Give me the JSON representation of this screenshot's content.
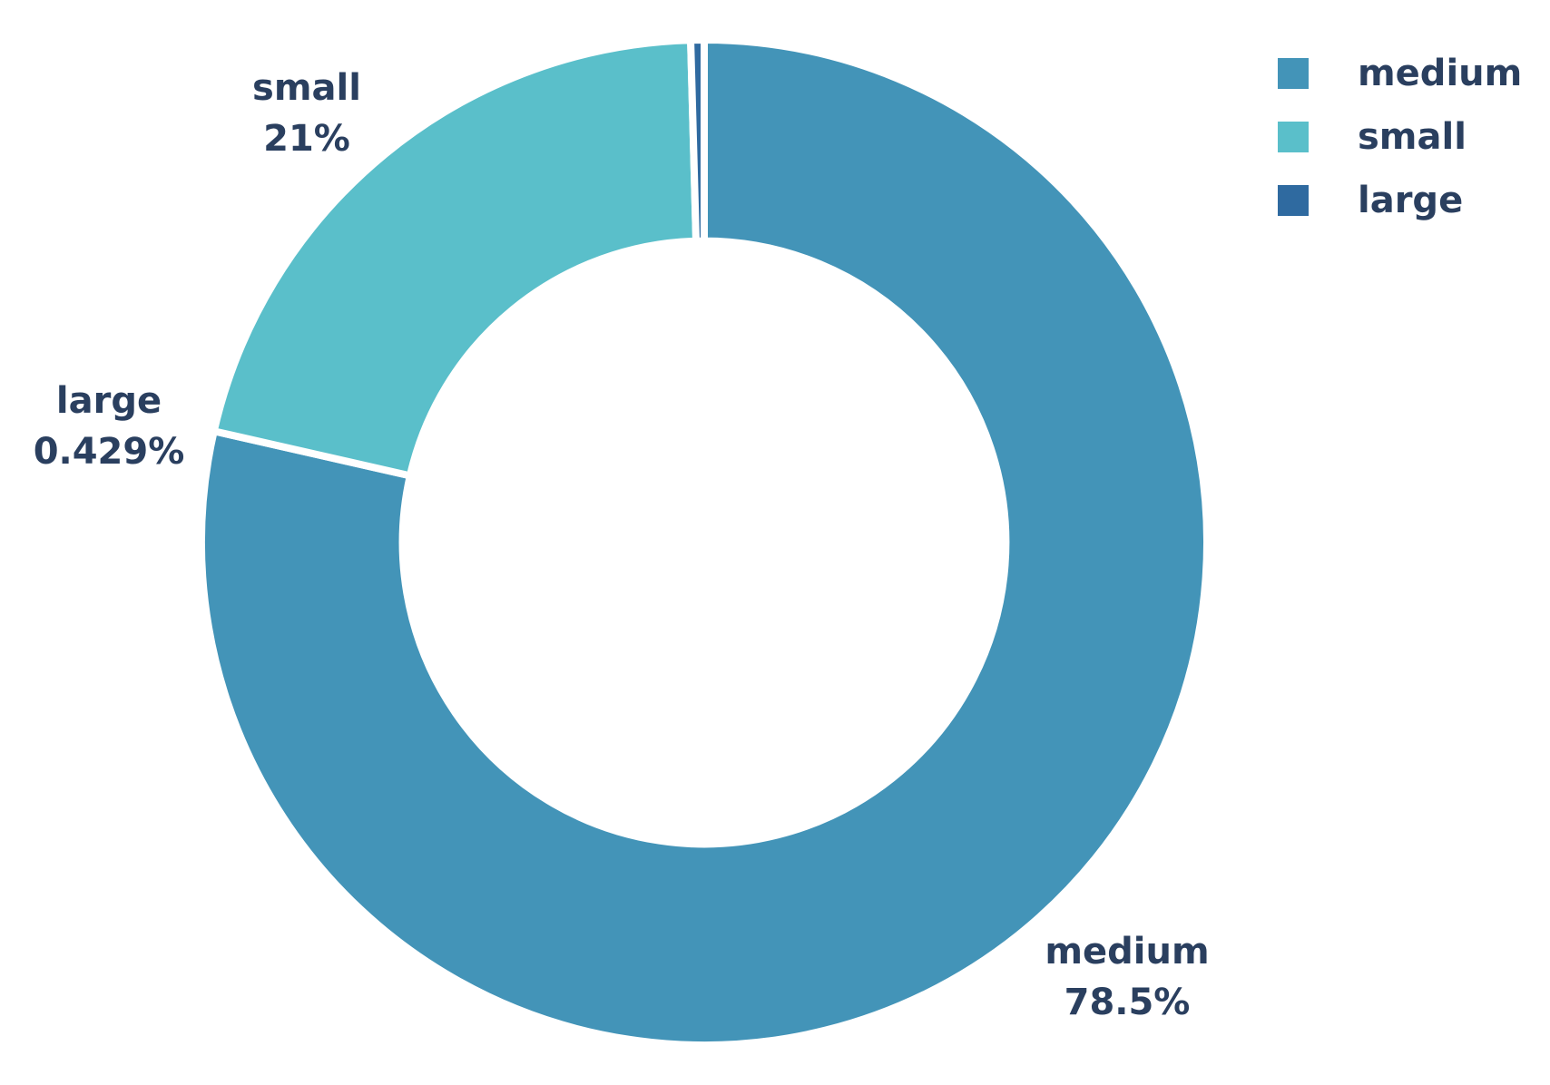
{
  "chart_data": {
    "type": "pie",
    "hole": 0.6,
    "title": "",
    "categories": [
      "medium",
      "small",
      "large"
    ],
    "values": [
      78.5,
      21,
      0.429
    ],
    "labels": [
      {
        "name": "medium",
        "percent": "78.5%"
      },
      {
        "name": "small",
        "percent": "21%"
      },
      {
        "name": "large",
        "percent": "0.429%"
      }
    ],
    "colors": [
      "#4394b8",
      "#5abfca",
      "#2f6aa0"
    ],
    "legend": {
      "position": "top-right",
      "items": [
        {
          "label": "medium",
          "color": "#4394b8"
        },
        {
          "label": "small",
          "color": "#5abfca"
        },
        {
          "label": "large",
          "color": "#2f6aa0"
        }
      ]
    }
  }
}
